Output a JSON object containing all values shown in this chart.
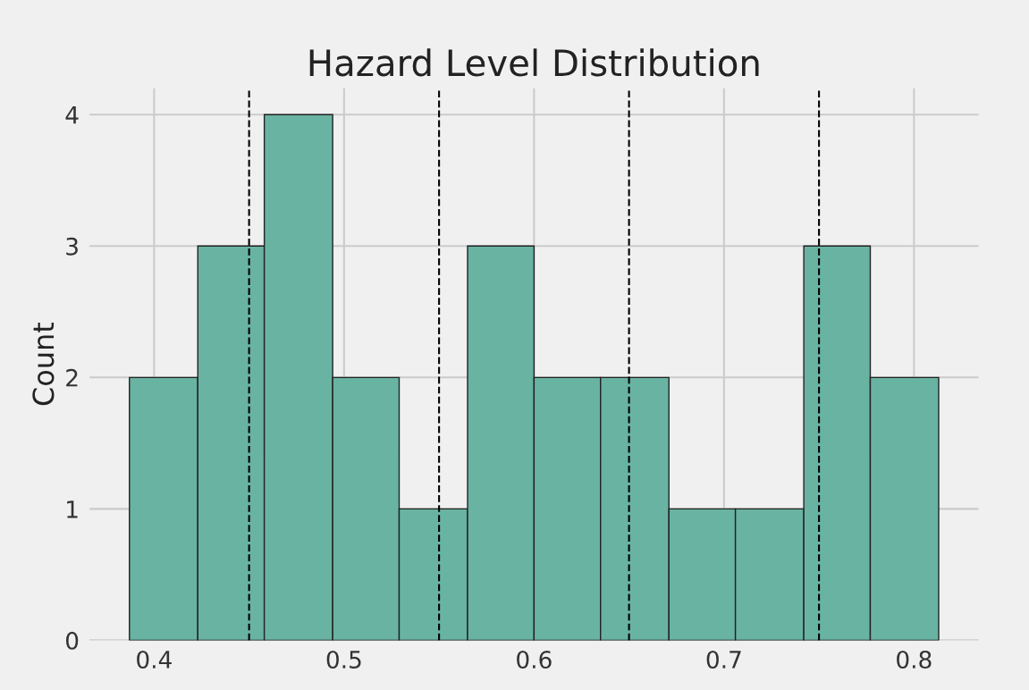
{
  "chart_data": {
    "type": "histogram",
    "title": "Hazard Level Distribution",
    "ylabel": "Count",
    "bins": [
      0.387,
      0.423,
      0.458,
      0.494,
      0.529,
      0.565,
      0.6,
      0.635,
      0.671,
      0.706,
      0.742,
      0.777,
      0.813
    ],
    "values": [
      2,
      3,
      4,
      2,
      1,
      3,
      2,
      2,
      1,
      1,
      3,
      2
    ],
    "color": "#69b3a2",
    "xlim": [
      0.366,
      0.834
    ],
    "ylim": [
      0,
      4.2
    ],
    "xticks": [
      0.4,
      0.5,
      0.6,
      0.7,
      0.8
    ],
    "yticks": [
      0,
      1,
      2,
      3,
      4
    ],
    "grid": true,
    "ref_lines": [
      {
        "axis": "x",
        "value": 0.45,
        "color": "#000000",
        "line_style": "dashed"
      },
      {
        "axis": "x",
        "value": 0.55,
        "color": "#000000",
        "line_style": "dashed"
      },
      {
        "axis": "x",
        "value": 0.65,
        "color": "#000000",
        "line_style": "dashed"
      },
      {
        "axis": "x",
        "value": 0.75,
        "color": "#000000",
        "line_style": "dashed"
      }
    ]
  }
}
